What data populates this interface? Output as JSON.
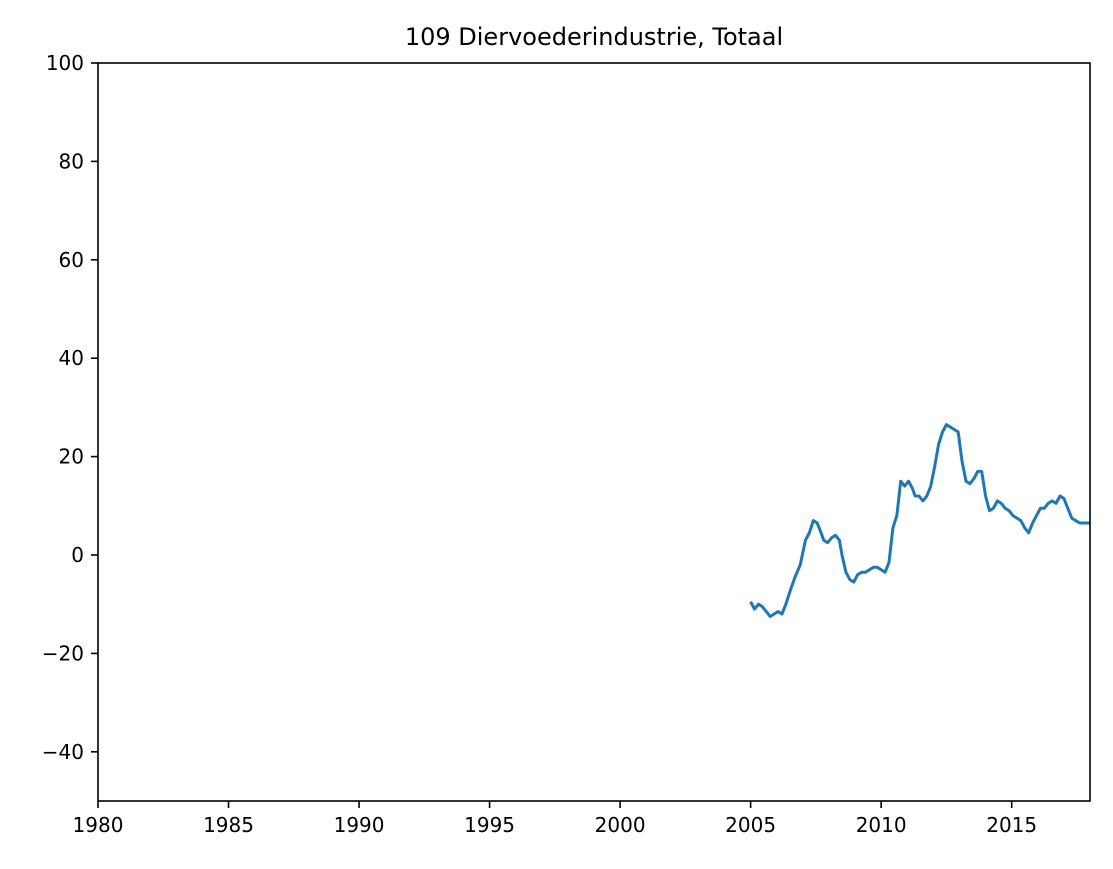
{
  "chart_data": {
    "type": "line",
    "title": "109 Diervoederindustrie, Totaal",
    "xlabel": "",
    "ylabel": "",
    "xlim": [
      1980,
      2018
    ],
    "ylim": [
      -50,
      100
    ],
    "grid": false,
    "x_ticks": [
      1980,
      1985,
      1990,
      1995,
      2000,
      2005,
      2010,
      2015
    ],
    "x_tick_labels": [
      "1980",
      "1985",
      "1990",
      "1995",
      "2000",
      "2005",
      "2010",
      "2015"
    ],
    "y_ticks": [
      -40,
      -20,
      0,
      20,
      40,
      60,
      80,
      100
    ],
    "y_tick_labels": [
      "−40",
      "−20",
      "0",
      "20",
      "40",
      "60",
      "80",
      "100"
    ],
    "series": [
      {
        "color": "#1f77b4",
        "x": [
          2005.0,
          2005.15,
          2005.3,
          2005.45,
          2005.6,
          2005.75,
          2005.9,
          2006.05,
          2006.2,
          2006.35,
          2006.5,
          2006.7,
          2006.9,
          2007.1,
          2007.25,
          2007.4,
          2007.55,
          2007.7,
          2007.8,
          2007.95,
          2008.1,
          2008.25,
          2008.4,
          2008.5,
          2008.65,
          2008.8,
          2008.95,
          2009.1,
          2009.25,
          2009.4,
          2009.55,
          2009.7,
          2009.85,
          2010.0,
          2010.15,
          2010.3,
          2010.45,
          2010.6,
          2010.75,
          2010.9,
          2011.05,
          2011.2,
          2011.3,
          2011.45,
          2011.6,
          2011.75,
          2011.9,
          2012.05,
          2012.2,
          2012.35,
          2012.5,
          2012.65,
          2012.8,
          2012.95,
          2013.1,
          2013.25,
          2013.4,
          2013.55,
          2013.7,
          2013.85,
          2014.0,
          2014.15,
          2014.3,
          2014.45,
          2014.6,
          2014.75,
          2014.9,
          2015.05,
          2015.2,
          2015.35,
          2015.5,
          2015.65,
          2015.8,
          2015.95,
          2016.1,
          2016.25,
          2016.4,
          2016.55,
          2016.7,
          2016.85,
          2017.0,
          2017.15,
          2017.3,
          2017.45,
          2017.6,
          2017.75,
          2017.9,
          2018.0
        ],
        "y": [
          -9.5,
          -11.0,
          -10.0,
          -10.5,
          -11.5,
          -12.5,
          -12.0,
          -11.5,
          -12.0,
          -10.0,
          -7.5,
          -4.5,
          -2.0,
          3.0,
          4.5,
          7.0,
          6.5,
          4.5,
          3.0,
          2.5,
          3.5,
          4.0,
          3.0,
          0.0,
          -3.5,
          -5.0,
          -5.5,
          -4.0,
          -3.5,
          -3.5,
          -3.0,
          -2.5,
          -2.5,
          -3.0,
          -3.5,
          -1.5,
          5.5,
          8.0,
          15.0,
          14.0,
          15.0,
          13.5,
          12.0,
          12.0,
          11.0,
          12.0,
          14.0,
          18.0,
          22.5,
          25.0,
          26.5,
          26.0,
          25.5,
          25.0,
          19.0,
          15.0,
          14.5,
          15.5,
          17.0,
          17.0,
          12.0,
          9.0,
          9.5,
          11.0,
          10.5,
          9.5,
          9.0,
          8.0,
          7.5,
          7.0,
          5.5,
          4.5,
          6.5,
          8.0,
          9.5,
          9.5,
          10.5,
          11.0,
          10.5,
          12.0,
          11.5,
          9.5,
          7.5,
          7.0,
          6.5,
          6.5,
          6.5,
          6.5
        ]
      }
    ]
  }
}
